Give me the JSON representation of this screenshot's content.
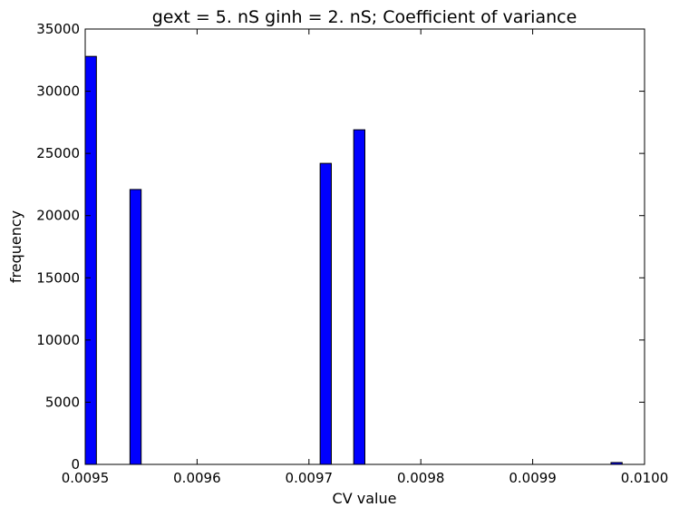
{
  "chart_data": {
    "type": "bar",
    "title": "gext = 5. nS ginh = 2. nS; Coefficient of variance",
    "xlabel": "CV value",
    "ylabel": "frequency",
    "xlim": [
      0.0095,
      0.01
    ],
    "ylim": [
      0,
      35000
    ],
    "x_ticks": [
      "0.0095",
      "0.0096",
      "0.0097",
      "0.0098",
      "0.0099",
      "0.0100"
    ],
    "y_ticks": [
      "0",
      "5000",
      "10000",
      "15000",
      "20000",
      "25000",
      "30000",
      "35000"
    ],
    "bin_width": 1e-05,
    "bars": [
      {
        "x_start": 0.0095,
        "value": 32800
      },
      {
        "x_start": 0.00954,
        "value": 22100
      },
      {
        "x_start": 0.00971,
        "value": 24200
      },
      {
        "x_start": 0.00974,
        "value": 26900
      },
      {
        "x_start": 0.00997,
        "value": 150
      }
    ],
    "bar_color": "#0000ff",
    "grid": false
  }
}
